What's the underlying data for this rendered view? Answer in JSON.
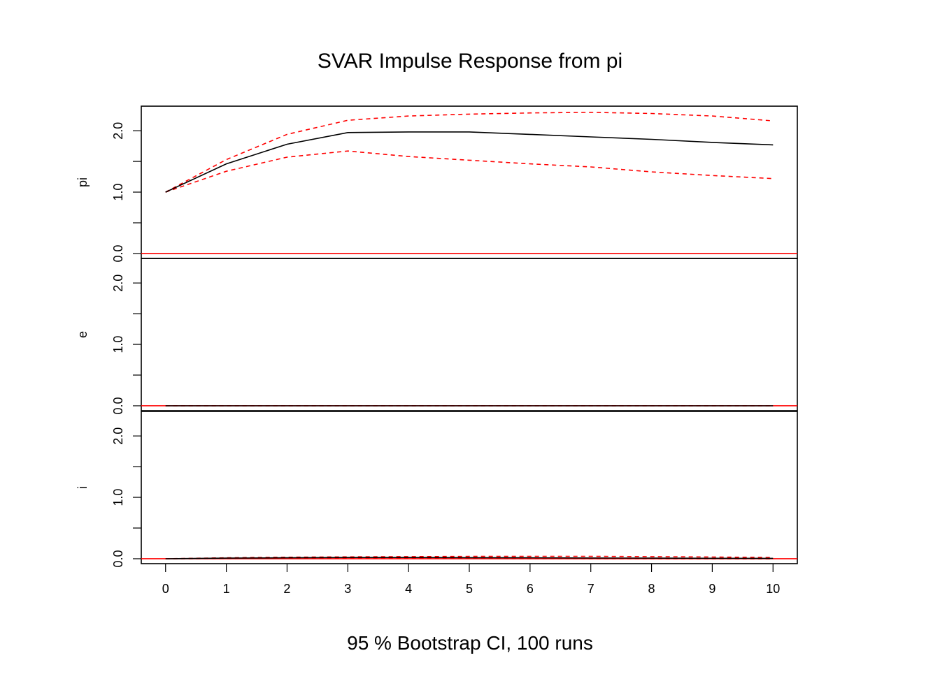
{
  "chart_data": {
    "type": "line",
    "title": "SVAR Impulse Response from pi",
    "subtitle": "95 % Bootstrap CI,  100 runs",
    "x": [
      0,
      1,
      2,
      3,
      4,
      5,
      6,
      7,
      8,
      9,
      10
    ],
    "x_ticks": [
      "0",
      "1",
      "2",
      "3",
      "4",
      "5",
      "6",
      "7",
      "8",
      "9",
      "10"
    ],
    "ylim": [
      -0.08,
      2.4
    ],
    "y_ticks": [
      0.0,
      0.5,
      1.0,
      1.5,
      2.0
    ],
    "y_tick_labels": [
      "0.0",
      "1.0",
      "2.0"
    ],
    "grid": false,
    "zero_line_color": "#ff0000",
    "response_color": "#000000",
    "ci_color": "#ff0000",
    "panels": [
      {
        "name": "pi",
        "response": [
          1.0,
          1.46,
          1.78,
          1.97,
          1.98,
          1.98,
          1.94,
          1.9,
          1.86,
          1.81,
          1.77
        ],
        "upper": [
          1.0,
          1.53,
          1.94,
          2.17,
          2.24,
          2.27,
          2.29,
          2.3,
          2.28,
          2.24,
          2.16
        ],
        "lower": [
          1.0,
          1.34,
          1.57,
          1.67,
          1.58,
          1.52,
          1.46,
          1.41,
          1.33,
          1.27,
          1.22
        ]
      },
      {
        "name": "e",
        "response": [
          0,
          0,
          0,
          0,
          0,
          0,
          0,
          0,
          0,
          0,
          0
        ],
        "upper": [
          0,
          0,
          0,
          0,
          0,
          0,
          0,
          0,
          0,
          0,
          0
        ],
        "lower": [
          0,
          0,
          0,
          0,
          0,
          0,
          0,
          0,
          0,
          0,
          0
        ]
      },
      {
        "name": "i",
        "response": [
          0.0,
          0.01,
          0.015,
          0.02,
          0.02,
          0.018,
          0.015,
          0.012,
          0.01,
          0.008,
          0.006
        ],
        "upper": [
          0.0,
          0.015,
          0.025,
          0.03,
          0.035,
          0.038,
          0.04,
          0.04,
          0.035,
          0.028,
          0.02
        ],
        "lower": [
          0.0,
          0.002,
          0.004,
          0.005,
          0.004,
          0.003,
          0.002,
          0.001,
          0.0,
          -0.002,
          -0.003
        ]
      }
    ]
  }
}
